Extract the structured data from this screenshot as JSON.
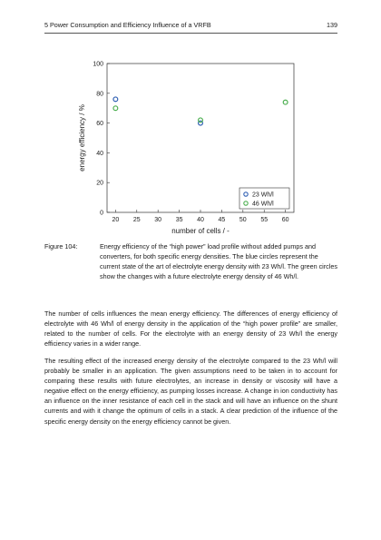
{
  "header": {
    "title": "5 Power Consumption and Efficiency Influence of a VRFB",
    "page_number": "139"
  },
  "chart_data": {
    "type": "scatter",
    "xlabel": "number of cells / -",
    "ylabel": "energy efficiency / %",
    "xlim": [
      18,
      62
    ],
    "ylim": [
      0,
      100
    ],
    "xticks": [
      20,
      25,
      30,
      35,
      40,
      45,
      50,
      55,
      60
    ],
    "yticks": [
      0,
      20,
      40,
      60,
      80,
      100
    ],
    "grid": false,
    "legend_position": "bottom-right",
    "series": [
      {
        "name": "23 Wh/l",
        "color": "#2f5fb3",
        "x": [
          20,
          40
        ],
        "y": [
          76,
          60
        ]
      },
      {
        "name": "46 Wh/l",
        "color": "#4caf50",
        "x": [
          20,
          40,
          60
        ],
        "y": [
          70,
          62,
          74
        ]
      }
    ]
  },
  "caption": {
    "label": "Figure 104:",
    "text": "Energy efficiency of the “high power” load profile without added pumps and converters, for both specific energy densities. The blue circles represent the current state of the art of electrolyte energy density with 23 Wh/l. The green circles show the changes with a future electrolyte energy density of 46 Wh/l."
  },
  "paragraphs": [
    "The number of cells influences the mean energy efficiency. The differences of energy efficiency of electrolyte with 46 Wh/l of energy density in the application of the “high power profile” are smaller, related to the number of cells. For the electrolyte with an energy density of 23 Wh/l the energy efficiency varies in a wider range.",
    "The resulting effect of the increased energy density of the electrolyte compared to the 23 Wh/l will probably be smaller in an application. The given assumptions need to be taken in to account for comparing these results with future electrolytes, an increase in density or viscosity will have a negative effect on the energy efficiency, as pumping losses increase. A change in ion conductivity has an influence on the inner resistance of each cell in the stack and will have an influence on the shunt currents and with it change the optimum of cells in a stack. A clear prediction of the influence of the specific energy density on the energy efficiency cannot be given."
  ]
}
